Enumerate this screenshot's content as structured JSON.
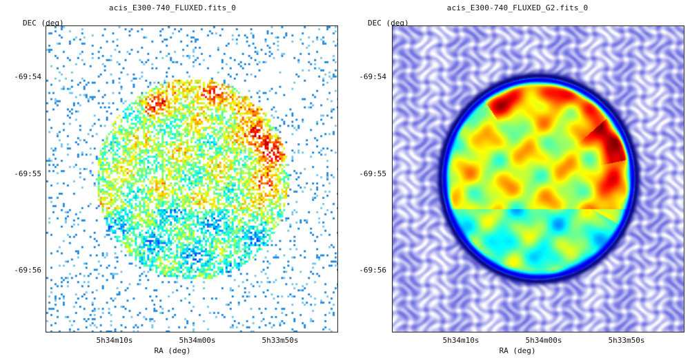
{
  "panels": [
    {
      "title": "acis_E300-740_FLUXED.fits_0",
      "y_axis_label": "DEC (deg)",
      "x_axis_label": "RA (deg)",
      "y_ticks": [
        "-69:54",
        "-69:55",
        "-69:56"
      ],
      "x_ticks": [
        "5h34m10s",
        "5h34m00s",
        "5h33m50s"
      ],
      "style": "raw-counts"
    },
    {
      "title": "acis_E300-740_FLUXED_G2.fits_0",
      "y_axis_label": "DEC (deg)",
      "x_axis_label": "RA (deg)",
      "y_ticks": [
        "-69:54",
        "-69:55",
        "-69:56"
      ],
      "x_ticks": [
        "5h34m10s",
        "5h34m00s",
        "5h33m50s"
      ],
      "style": "gaussian-smoothed"
    }
  ],
  "colors": {
    "frame": "#222222",
    "background": "#ffffff"
  }
}
